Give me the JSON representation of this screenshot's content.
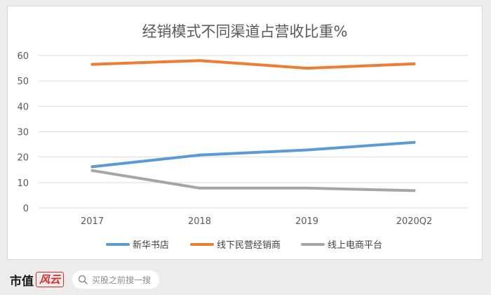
{
  "chart_data": {
    "type": "line",
    "title": "经销模式不同渠道占营收比重%",
    "categories": [
      "2017",
      "2018",
      "2019",
      "2020Q2"
    ],
    "ylim": [
      0,
      60
    ],
    "yticks": [
      "0",
      "10",
      "20",
      "30",
      "40",
      "50",
      "60"
    ],
    "grid": true,
    "legend_position": "bottom",
    "series": [
      {
        "name": "新华书店",
        "values": [
          16.2,
          20.8,
          22.8,
          25.8
        ],
        "color": "#5b9bd5"
      },
      {
        "name": "线下民营经销商",
        "values": [
          56.5,
          58.0,
          55.0,
          56.7
        ],
        "color": "#ed7d31"
      },
      {
        "name": "线上电商平台",
        "values": [
          14.7,
          7.8,
          7.8,
          6.8
        ],
        "color": "#a5a5a5"
      }
    ]
  },
  "footer": {
    "brand_text": "市值",
    "brand_mark": "风云",
    "search_placeholder": "买股之前搜一搜"
  }
}
